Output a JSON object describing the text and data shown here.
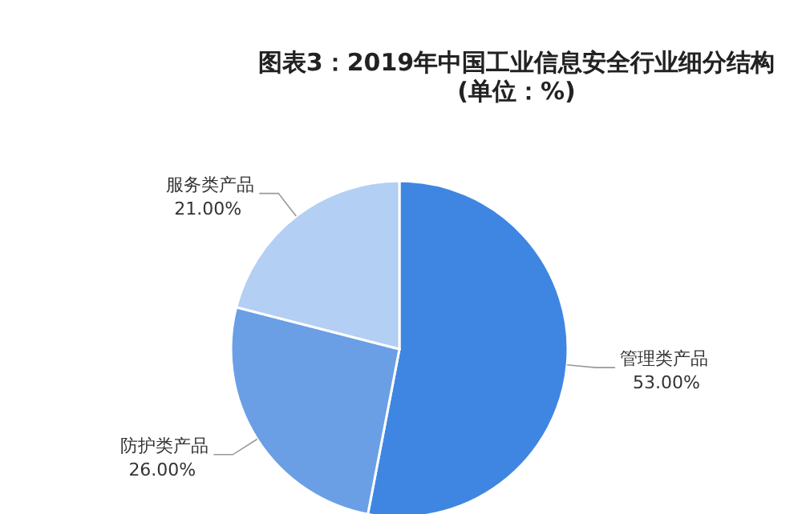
{
  "chart_data": {
    "type": "pie",
    "title": "图表3：2019年中国工业信息安全行业细分结构",
    "subtitle": "(单位：%)",
    "categories": [
      "管理类产品",
      "防护类产品",
      "服务类产品"
    ],
    "values": [
      53,
      26,
      21
    ],
    "value_labels": [
      "53.00%",
      "26.00%",
      "21.00%"
    ],
    "colors": [
      "#3f86e2",
      "#6a9fe6",
      "#b3cff3"
    ]
  }
}
